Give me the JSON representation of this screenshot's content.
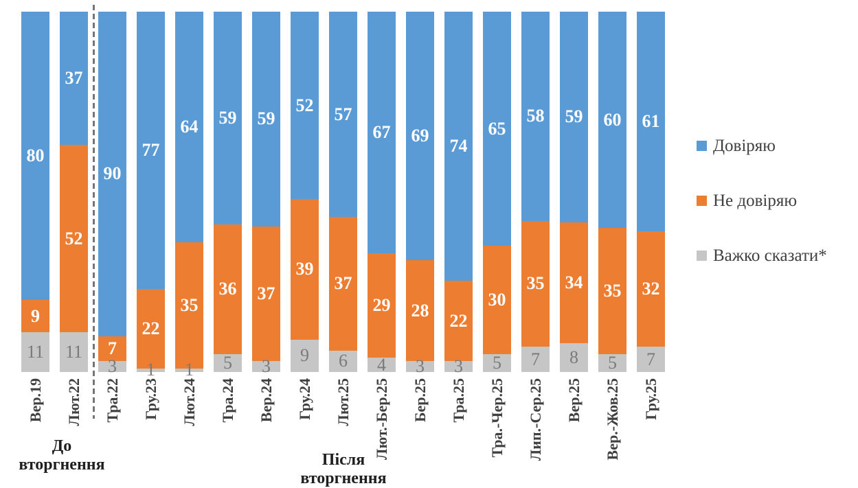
{
  "chart_data": {
    "type": "bar",
    "subtype": "stacked-percent",
    "title": "",
    "xlabel": "",
    "ylabel": "",
    "ylim": [
      0,
      100
    ],
    "grid": false,
    "legend_position": "right",
    "categories": [
      "Вер.19",
      "Лют.22",
      "Тра.22",
      "Гру.23",
      "Лют.24",
      "Тра.24",
      "Вер.24",
      "Гру.24",
      "Лют.25",
      "Лют.-Бер.25",
      "Бер.25",
      "Тра.25",
      "Тра.-Чер.25",
      "Лип.-Сер.25",
      "Вер.25",
      "Вер.-Жов.25",
      "Гру.25"
    ],
    "series": [
      {
        "name": "Довіряю",
        "color": "#5B9BD5",
        "value_label_color": "#FFFFFF",
        "value_label_weight": "bold",
        "values": [
          80,
          37,
          90,
          77,
          64,
          59,
          59,
          52,
          57,
          67,
          69,
          74,
          65,
          58,
          59,
          60,
          61
        ]
      },
      {
        "name": "Не довіряю",
        "color": "#ED7D31",
        "value_label_color": "#FFFFFF",
        "value_label_weight": "bold",
        "values": [
          9,
          52,
          7,
          22,
          35,
          36,
          37,
          39,
          37,
          29,
          28,
          22,
          30,
          35,
          34,
          35,
          32
        ]
      },
      {
        "name": "Важко сказати*",
        "color": "#C6C6C6",
        "value_label_color": "#7A7A7A",
        "value_label_weight": "normal",
        "values": [
          11,
          11,
          3,
          1,
          1,
          5,
          3,
          9,
          6,
          4,
          3,
          3,
          5,
          7,
          8,
          5,
          7
        ]
      }
    ],
    "divider_after_category_index": 1,
    "group_labels": {
      "before": [
        "До",
        "вторгнення"
      ],
      "after": [
        "Після",
        "вторгнення"
      ]
    },
    "tick_label_color": "#404040",
    "legend_text_color": "#404040",
    "divider_color": "#757575"
  }
}
